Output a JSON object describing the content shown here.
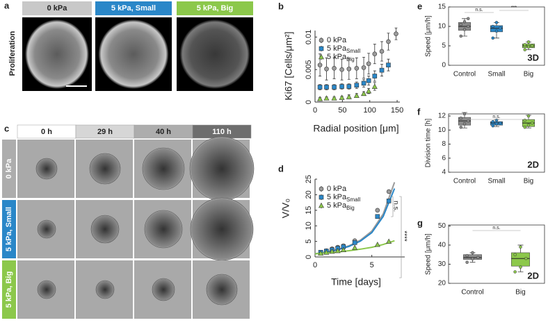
{
  "figure": {
    "a": {
      "label": "a",
      "headers": [
        "0 kPa",
        "5 kPa, Small",
        "5 kPa, Big"
      ],
      "header_colors": [
        "#c8c8c8",
        "#2a87c8",
        "#8cc84b"
      ],
      "row_label": "Proliferation"
    },
    "c": {
      "label": "c",
      "headers": [
        "0 h",
        "29 h",
        "40 h",
        "110 h"
      ],
      "header_colors": [
        "#ffffff",
        "#d6d6d6",
        "#adadad",
        "#6e6e6e"
      ],
      "row_labels": [
        "0 kPa",
        "5 kPa, Small",
        "5 kPa, Big"
      ],
      "row_colors": [
        "#adadad",
        "#2a87c8",
        "#8cc84b"
      ]
    }
  },
  "chart_data": [
    {
      "type": "errorbar",
      "label": "b",
      "x_label": "Radial position [μm]",
      "y_label": "Ki67  [Cells/μm²]",
      "x": [
        9,
        21,
        35,
        49,
        62,
        76,
        89,
        98,
        109,
        122,
        134,
        148
      ],
      "xlim": [
        0,
        155
      ],
      "xticks": [
        0,
        50,
        100,
        150
      ],
      "ylim": [
        0,
        0.011
      ],
      "yticks": [
        0,
        0.005,
        0.01
      ],
      "series": [
        {
          "name": "0 kPa",
          "color": "#9a9a9a",
          "marker": "circle",
          "values": [
            0.0057,
            0.0051,
            0.0052,
            0.005,
            0.0051,
            0.0052,
            0.0053,
            0.0059,
            0.0074,
            0.0078,
            0.0093,
            0.0105
          ],
          "errors": [
            0.0017,
            0.0017,
            0.0016,
            0.0016,
            0.0016,
            0.0016,
            0.0016,
            0.0016,
            0.0015,
            0.0015,
            0.0013,
            0.0009
          ]
        },
        {
          "name": "5 kPa",
          "name_sub": "Small",
          "color": "#2a87c8",
          "marker": "square",
          "values": [
            0.0023,
            0.0023,
            0.0023,
            0.0024,
            0.0024,
            0.0026,
            0.0029,
            0.0033,
            0.004,
            0.0049,
            0.0057,
            null
          ],
          "errors": [
            0.0004,
            0.0004,
            0.0004,
            0.0004,
            0.0004,
            0.0005,
            0.0006,
            0.0007,
            0.0008,
            0.0009,
            0.0009,
            null
          ]
        },
        {
          "name": "5 kPa",
          "name_sub": "Big",
          "color": "#8cc84b",
          "marker": "triangle",
          "values": [
            0.0005,
            0.0006,
            0.0006,
            0.0007,
            0.0008,
            0.001,
            0.0013,
            0.0017,
            0.0024,
            null,
            null,
            null
          ],
          "errors": [
            0.0002,
            0.0002,
            0.0002,
            0.0002,
            0.0003,
            0.0003,
            0.0003,
            0.0004,
            0.0006,
            null,
            null,
            null
          ]
        }
      ]
    },
    {
      "type": "scatter",
      "label": "d",
      "x_label": "Time [days]",
      "y_label": "V/V₀",
      "xlim": [
        0,
        7.9
      ],
      "xticks": [
        0,
        5
      ],
      "ylim": [
        0,
        25
      ],
      "yticks": [
        0,
        5,
        10,
        15,
        20,
        25
      ],
      "annotations": [
        "n.s.",
        "****"
      ],
      "series": [
        {
          "name": "0 kPa",
          "color": "#9a9a9a",
          "marker": "circle",
          "x": [
            0.5,
            1,
            1.5,
            2,
            2.5,
            3.5,
            5.5,
            6.5
          ],
          "values": [
            1.5,
            2,
            2.6,
            3.1,
            3.6,
            5.2,
            15,
            21
          ],
          "fit_x": [
            0,
            1,
            2,
            3,
            4,
            5,
            6,
            7
          ],
          "fit_values": [
            1,
            1.6,
            2.4,
            3.6,
            5.4,
            8.3,
            13.8,
            24
          ]
        },
        {
          "name": "5 kPa",
          "name_sub": "Small",
          "color": "#2a87c8",
          "marker": "square",
          "x": [
            0.5,
            1,
            1.5,
            2,
            2.5,
            3.5,
            5.5,
            6.5
          ],
          "values": [
            1.5,
            1.9,
            2.3,
            2.8,
            3.3,
            4.6,
            13,
            18
          ],
          "fit_x": [
            0,
            1,
            2,
            3,
            4,
            5,
            6,
            7
          ],
          "fit_values": [
            1,
            1.5,
            2.3,
            3.4,
            5.1,
            7.8,
            13,
            22
          ]
        },
        {
          "name": "5 kPa",
          "name_sub": "Big",
          "color": "#8cc84b",
          "marker": "triangle",
          "x": [
            0.5,
            1,
            1.5,
            2,
            2.5,
            3.5,
            5.5,
            6.5
          ],
          "values": [
            1.2,
            1.5,
            1.8,
            2,
            2.3,
            3,
            4,
            5
          ],
          "fit_x": [
            0,
            1,
            2,
            3,
            4,
            5,
            6,
            7
          ],
          "fit_values": [
            1,
            1.3,
            1.6,
            2,
            2.5,
            3.1,
            4,
            5.2
          ]
        }
      ]
    },
    {
      "type": "box",
      "label": "e",
      "y_label": "Speed [μm/h]",
      "tag": "3D",
      "categories": [
        "Control",
        "Small",
        "Big"
      ],
      "colors": [
        "#8c8c8c",
        "#2a87c8",
        "#8cc84b"
      ],
      "ylim": [
        0,
        15
      ],
      "yticks": [
        0,
        5,
        10,
        15
      ],
      "annotations": [
        "n.s.",
        "***"
      ],
      "boxes": [
        {
          "whislo": 7.5,
          "q1": 9,
          "med": 10,
          "q3": 11,
          "whishi": 12,
          "points": [
            7.5,
            9.2,
            10,
            10.5,
            11.2,
            12
          ]
        },
        {
          "whislo": 7,
          "q1": 8.6,
          "med": 9.5,
          "q3": 10.2,
          "whishi": 11,
          "points": [
            7,
            8.8,
            9.6,
            10,
            11
          ]
        },
        {
          "whislo": 4,
          "q1": 4.5,
          "med": 5,
          "q3": 5.5,
          "whishi": 6,
          "points": [
            4,
            4.7,
            5,
            5.3,
            6
          ]
        }
      ]
    },
    {
      "type": "box",
      "label": "f",
      "y_label": "Division time [h]",
      "tag": "2D",
      "categories": [
        "Control",
        "Small",
        "Big"
      ],
      "colors": [
        "#8c8c8c",
        "#2a87c8",
        "#8cc84b"
      ],
      "ylim": [
        4,
        12.3
      ],
      "yticks": [
        4,
        6,
        8,
        10,
        12
      ],
      "annotations": [
        "n.s."
      ],
      "boxes": [
        {
          "whislo": 10.3,
          "q1": 10.7,
          "med": 11.3,
          "q3": 11.8,
          "whishi": 12.5,
          "points": [
            10.4,
            10.9,
            11.3,
            11.7,
            12.3
          ]
        },
        {
          "whislo": 10.5,
          "q1": 10.7,
          "med": 11,
          "q3": 11.2,
          "whishi": 11.5,
          "points": [
            10.6,
            10.9,
            11,
            11.2,
            11.4
          ]
        },
        {
          "whislo": 10.3,
          "q1": 10.5,
          "med": 11,
          "q3": 11.5,
          "whishi": 12.1,
          "points": [
            10.4,
            10.7,
            11,
            11.4,
            12
          ]
        }
      ]
    },
    {
      "type": "box",
      "label": "g",
      "y_label": "Speed [μm/h]",
      "tag": "2D",
      "categories": [
        "Control",
        "Big"
      ],
      "colors": [
        "#8c8c8c",
        "#8cc84b"
      ],
      "ylim": [
        20,
        50.5
      ],
      "yticks": [
        20,
        30,
        40,
        50
      ],
      "annotations": [
        "n.s."
      ],
      "boxes": [
        {
          "whislo": 31,
          "q1": 32.5,
          "med": 33.5,
          "q3": 35,
          "whishi": 36,
          "points": [
            31,
            32.8,
            33.5,
            34.5,
            36
          ]
        },
        {
          "whislo": 26,
          "q1": 29,
          "med": 33,
          "q3": 36,
          "whishi": 40,
          "points": [
            26,
            28.5,
            33,
            35,
            39
          ]
        }
      ]
    }
  ]
}
